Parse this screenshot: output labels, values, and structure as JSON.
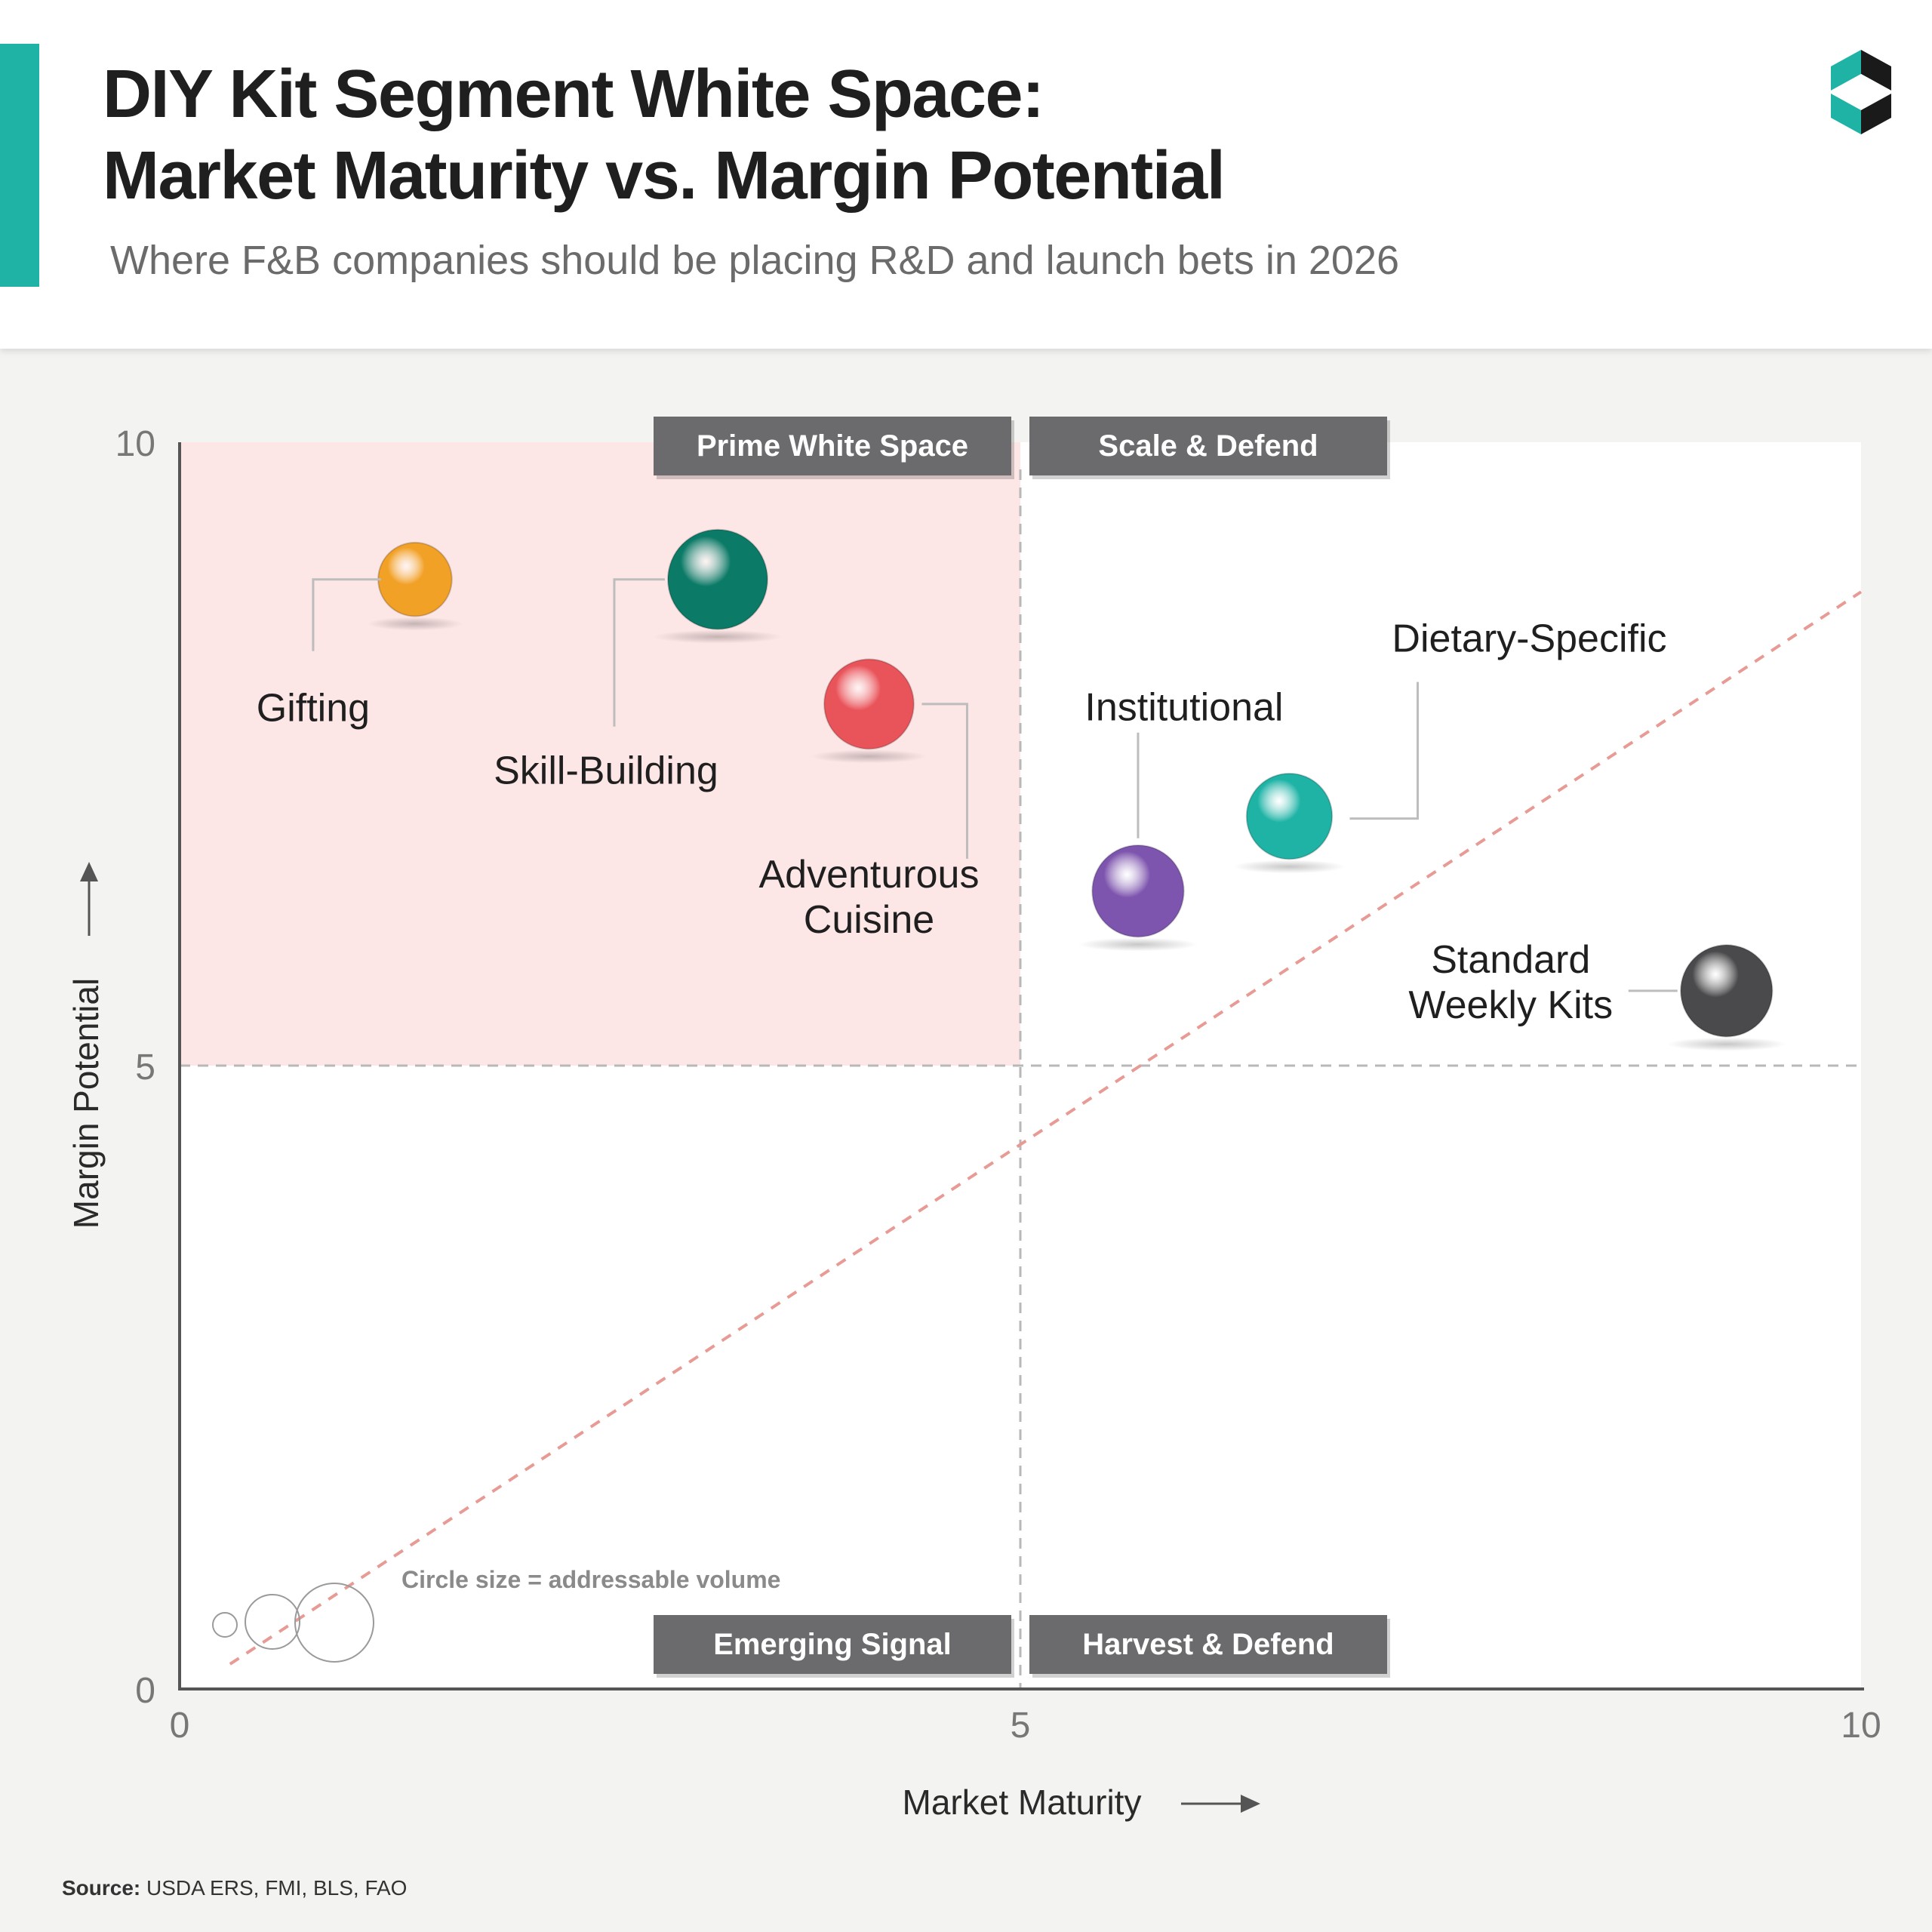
{
  "title_line_1": "DIY Kit Segment White Space:",
  "title_line_2": "Market Maturity vs. Margin Potential",
  "subtitle": "Where F&B companies should be placing R&D and launch bets in 2026",
  "brand_icon": "brand-logo-icon",
  "colors": {
    "accent": "#1fb3a6",
    "highlight_quadrant": "#fde6e6",
    "trend_line": "#e89a94",
    "label_bg": "#6b6b6e"
  },
  "source": {
    "label": "Source:",
    "text": "USDA ERS, FMI, BLS, FAO"
  },
  "chart_data": {
    "type": "scatter",
    "xlabel": "Market Maturity",
    "ylabel": "Margin Potential",
    "xlim": [
      0,
      10
    ],
    "ylim": [
      0,
      10
    ],
    "x_ticks": [
      "0",
      "5",
      "10"
    ],
    "y_ticks": [
      "0",
      "5",
      "10"
    ],
    "grid": false,
    "quadrant_dividers": {
      "x": 5,
      "y": 5
    },
    "highlighted_quadrant": "top-left",
    "trend_line": {
      "from": [
        0.3,
        0.2
      ],
      "to": [
        10,
        8.8
      ],
      "style": "dashed"
    },
    "quadrant_labels": [
      {
        "text": "Prime White Space",
        "position": "top-left"
      },
      {
        "text": "Scale & Defend",
        "position": "top-right"
      },
      {
        "text": "Emerging Signal",
        "position": "bottom-left"
      },
      {
        "text": "Harvest & Defend",
        "position": "bottom-right"
      }
    ],
    "size_legend": {
      "text": "Circle size = addressable volume",
      "sizes": [
        "small",
        "medium",
        "large"
      ]
    },
    "points": [
      {
        "label": [
          "Gifting"
        ],
        "x": 1.4,
        "y": 8.9,
        "size": 0.74,
        "color": "#f2a127"
      },
      {
        "label": [
          "Skill-Building"
        ],
        "x": 3.2,
        "y": 8.9,
        "size": 1.0,
        "color": "#0b7a67"
      },
      {
        "label": [
          "Adventurous",
          "Cuisine"
        ],
        "x": 4.1,
        "y": 7.9,
        "size": 0.9,
        "color": "#e9545a"
      },
      {
        "label": [
          "Institutional"
        ],
        "x": 5.7,
        "y": 6.4,
        "size": 0.92,
        "color": "#7e55ae"
      },
      {
        "label": [
          "Dietary-Specific"
        ],
        "x": 6.6,
        "y": 7.0,
        "size": 0.86,
        "color": "#1fb3a6"
      },
      {
        "label": [
          "Standard",
          "Weekly Kits"
        ],
        "x": 9.2,
        "y": 5.6,
        "size": 0.92,
        "color": "#4a4a4c"
      }
    ]
  }
}
